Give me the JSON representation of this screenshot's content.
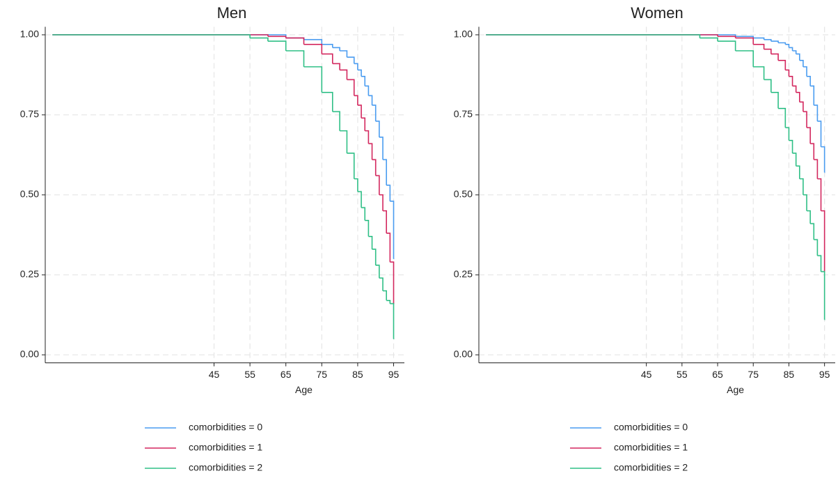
{
  "chart_data": [
    {
      "type": "line",
      "step": true,
      "title": "Men",
      "xlabel": "Age",
      "x": [
        0,
        55,
        60,
        65,
        70,
        75,
        78,
        80,
        82,
        84,
        85,
        86,
        87,
        88,
        89,
        90,
        91,
        92,
        93,
        94,
        95
      ],
      "xlim": [
        -2,
        98
      ],
      "xticks": [
        45,
        55,
        65,
        75,
        85,
        95
      ],
      "ylim": [
        -0.025,
        1.025
      ],
      "yticks": [
        {
          "value": 0,
          "label": "0.00"
        },
        {
          "value": 0.25,
          "label": "0.25"
        },
        {
          "value": 0.5,
          "label": "0.50"
        },
        {
          "value": 0.75,
          "label": "0.75"
        },
        {
          "value": 1,
          "label": "1.00"
        }
      ],
      "grid": true,
      "legend": "bottom",
      "series": [
        {
          "name": "comorbidities = 0",
          "color": "#4a9cf0",
          "values": [
            1,
            1,
            1,
            0.99,
            0.985,
            0.97,
            0.96,
            0.95,
            0.93,
            0.91,
            0.89,
            0.87,
            0.84,
            0.81,
            0.78,
            0.73,
            0.68,
            0.61,
            0.53,
            0.48,
            0.3
          ]
        },
        {
          "name": "comorbidities = 1",
          "color": "#d3275e",
          "values": [
            1,
            1,
            0.995,
            0.99,
            0.97,
            0.94,
            0.91,
            0.89,
            0.86,
            0.81,
            0.78,
            0.74,
            0.7,
            0.66,
            0.61,
            0.56,
            0.5,
            0.45,
            0.38,
            0.29,
            0.16
          ]
        },
        {
          "name": "comorbidities = 2",
          "color": "#2fbf86",
          "values": [
            1,
            0.99,
            0.98,
            0.95,
            0.9,
            0.82,
            0.76,
            0.7,
            0.63,
            0.55,
            0.51,
            0.46,
            0.42,
            0.37,
            0.33,
            0.28,
            0.24,
            0.2,
            0.17,
            0.16,
            0.05
          ]
        }
      ]
    },
    {
      "type": "line",
      "step": true,
      "title": "Women",
      "xlabel": "Age",
      "x": [
        0,
        55,
        60,
        65,
        70,
        75,
        78,
        80,
        82,
        84,
        85,
        86,
        87,
        88,
        89,
        90,
        91,
        92,
        93,
        94,
        95
      ],
      "xlim": [
        -2,
        98
      ],
      "xticks": [
        45,
        55,
        65,
        75,
        85,
        95
      ],
      "ylim": [
        -0.025,
        1.025
      ],
      "yticks": [
        {
          "value": 0,
          "label": "0.00"
        },
        {
          "value": 0.25,
          "label": "0.25"
        },
        {
          "value": 0.5,
          "label": "0.50"
        },
        {
          "value": 0.75,
          "label": "0.75"
        },
        {
          "value": 1,
          "label": "1.00"
        }
      ],
      "grid": true,
      "legend": "bottom",
      "series": [
        {
          "name": "comorbidities = 0",
          "color": "#4a9cf0",
          "values": [
            1,
            1,
            1,
            1,
            0.995,
            0.99,
            0.985,
            0.98,
            0.975,
            0.97,
            0.96,
            0.95,
            0.94,
            0.92,
            0.9,
            0.87,
            0.84,
            0.78,
            0.73,
            0.65,
            0.57
          ]
        },
        {
          "name": "comorbidities = 1",
          "color": "#d3275e",
          "values": [
            1,
            1,
            1,
            0.995,
            0.99,
            0.97,
            0.955,
            0.94,
            0.92,
            0.89,
            0.87,
            0.84,
            0.82,
            0.79,
            0.76,
            0.71,
            0.66,
            0.61,
            0.55,
            0.45,
            0.26
          ]
        },
        {
          "name": "comorbidities = 2",
          "color": "#2fbf86",
          "values": [
            1,
            1,
            0.99,
            0.98,
            0.95,
            0.9,
            0.86,
            0.82,
            0.77,
            0.71,
            0.67,
            0.63,
            0.59,
            0.55,
            0.5,
            0.45,
            0.41,
            0.36,
            0.31,
            0.26,
            0.11
          ]
        }
      ]
    }
  ]
}
